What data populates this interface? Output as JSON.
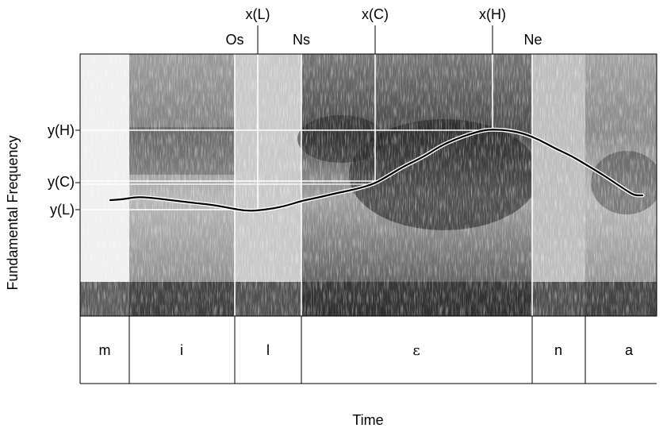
{
  "axes": {
    "y_label": "Fundamental Frequency",
    "x_label": "Time"
  },
  "time_markers": [
    {
      "key": "xL",
      "label": "x(L)"
    },
    {
      "key": "xC",
      "label": "x(C)"
    },
    {
      "key": "xH",
      "label": "x(H)"
    }
  ],
  "boundary_markers": [
    {
      "key": "Os",
      "label": "Os"
    },
    {
      "key": "Ns",
      "label": "Ns"
    },
    {
      "key": "Ne",
      "label": "Ne"
    }
  ],
  "frequency_markers": [
    {
      "key": "yH",
      "label": "y(H)"
    },
    {
      "key": "yC",
      "label": "y(C)"
    },
    {
      "key": "yL",
      "label": "y(L)"
    }
  ],
  "segments": [
    {
      "label": "m"
    },
    {
      "label": "i"
    },
    {
      "label": "l"
    },
    {
      "label": "ε"
    },
    {
      "label": "n"
    },
    {
      "label": "a"
    }
  ],
  "colors": {
    "spectrogram_dark": "#1a1a1a",
    "spectrogram_light": "#f2f2f2",
    "contour": "#000000",
    "guide_line": "#ffffff"
  }
}
